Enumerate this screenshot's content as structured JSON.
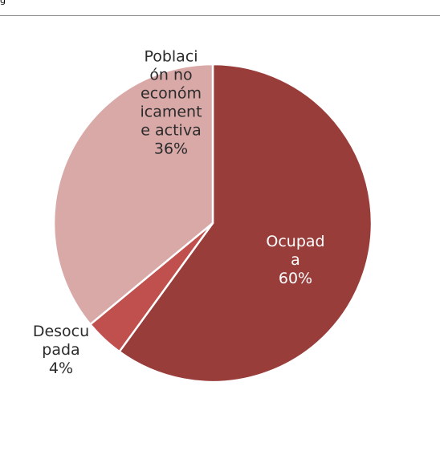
{
  "chart_data": {
    "type": "pie",
    "title": "",
    "slices": [
      {
        "label": [
          "Ocupad",
          "a",
          "60%"
        ],
        "value": 60,
        "color": "#993d3b",
        "text_color": "#ffffff"
      },
      {
        "label": [
          "Desocu",
          "pada",
          "4%"
        ],
        "value": 4,
        "color": "#c0504d",
        "text_color": "#2b2b2b"
      },
      {
        "label": [
          "Poblaci",
          "ón no",
          "económ",
          "icament",
          "e activa",
          "36%"
        ],
        "value": 36,
        "color": "#d9a9a8",
        "text_color": "#2b2b2b"
      }
    ],
    "start_angle_deg": 0,
    "direction": "clockwise",
    "labels_inside": true
  },
  "header": {
    "corner_mark": "g"
  }
}
